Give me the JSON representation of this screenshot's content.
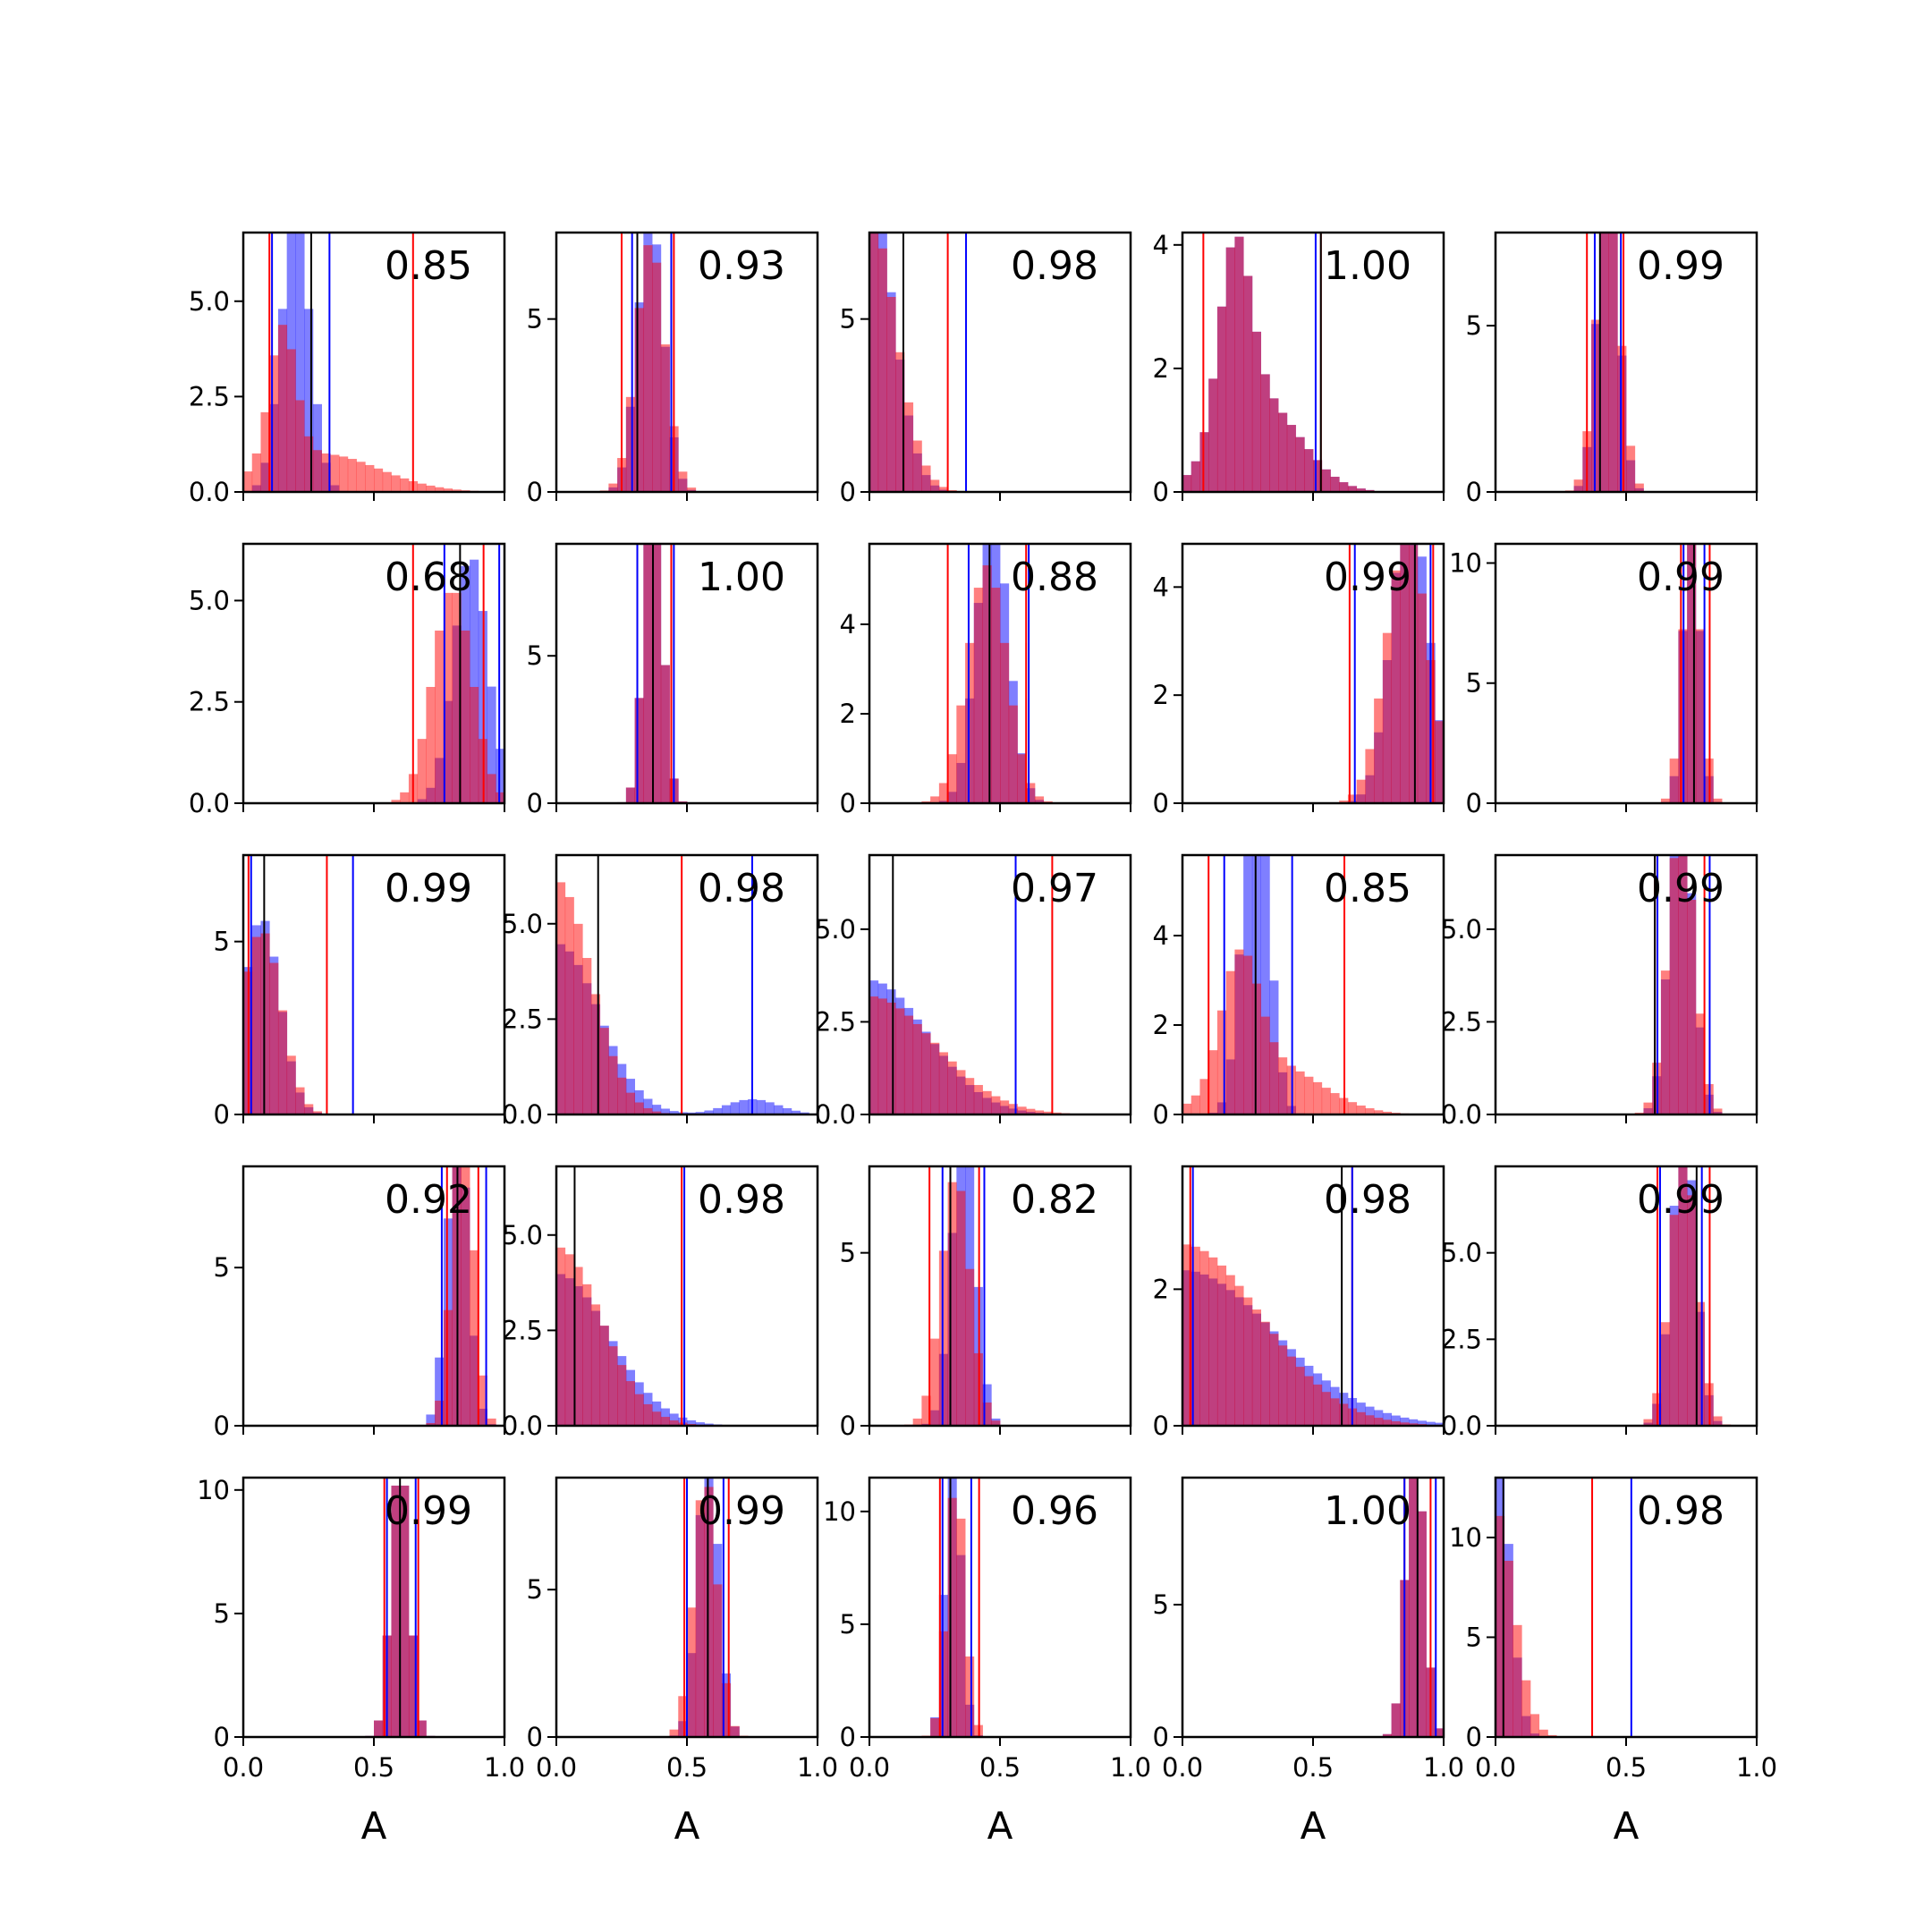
{
  "chart_data": {
    "type": "histogram-grid",
    "rows": 5,
    "cols": 5,
    "xlim": [
      0,
      1
    ],
    "xlabel": "A",
    "x_ticks": [
      0.0,
      0.5,
      1.0
    ],
    "x_tick_labels": [
      "0.0",
      "0.5",
      "1.0"
    ],
    "colors": {
      "blue": "#0000ff",
      "red": "#ff0000",
      "black": "#000000"
    },
    "bins": 30,
    "panels": [
      {
        "annotation": "0.85",
        "ylim": [
          0,
          6.8
        ],
        "yticks": [
          0,
          2.5,
          5.0
        ],
        "ytick_labels": [
          "0.0",
          "2.5",
          "5.0"
        ],
        "blue": [
          {
            "m": 0.2,
            "s": 0.055,
            "w": 1
          }
        ],
        "red": [
          {
            "m": 0.15,
            "s": 0.05,
            "w": 0.45
          },
          {
            "m": 0.3,
            "s": 0.22,
            "w": 0.55
          }
        ],
        "vlines": {
          "black": [
            0.26
          ],
          "blue": [
            0.11,
            0.33
          ],
          "red": [
            0.1,
            0.65
          ]
        }
      },
      {
        "annotation": "0.93",
        "ylim": [
          0,
          7.5
        ],
        "yticks": [
          0,
          5
        ],
        "ytick_labels": [
          "0",
          "5"
        ],
        "blue": [
          {
            "m": 0.36,
            "s": 0.05,
            "w": 1
          }
        ],
        "red": [
          {
            "m": 0.36,
            "s": 0.055,
            "w": 1
          }
        ],
        "vlines": {
          "black": [
            0.31
          ],
          "blue": [
            0.29,
            0.44
          ],
          "red": [
            0.25,
            0.45
          ]
        }
      },
      {
        "annotation": "0.98",
        "ylim": [
          0,
          7.5
        ],
        "yticks": [
          0,
          5
        ],
        "ytick_labels": [
          "0",
          "5"
        ],
        "blue": [
          {
            "m": 0.0,
            "s": 0.09,
            "w": 1,
            "half": true
          }
        ],
        "red": [
          {
            "m": 0.0,
            "s": 0.1,
            "w": 1,
            "half": true
          }
        ],
        "vlines": {
          "black": [
            0.13
          ],
          "blue": [
            0.37
          ],
          "red": [
            0.3
          ]
        }
      },
      {
        "annotation": "1.00",
        "ylim": [
          0,
          4.2
        ],
        "yticks": [
          0,
          2,
          4
        ],
        "ytick_labels": [
          "0",
          "2",
          "4"
        ],
        "blue": [
          {
            "m": 0.2,
            "s": 0.06,
            "w": 0.45
          },
          {
            "m": 0.3,
            "s": 0.15,
            "w": 0.55
          }
        ],
        "red": [
          {
            "m": 0.2,
            "s": 0.06,
            "w": 0.45
          },
          {
            "m": 0.3,
            "s": 0.15,
            "w": 0.55
          }
        ],
        "vlines": {
          "black": [
            0.53
          ],
          "blue": [
            0.51
          ],
          "red": [
            0.08,
            0.53
          ]
        }
      },
      {
        "annotation": "0.99",
        "ylim": [
          0,
          7.8
        ],
        "yticks": [
          0,
          5
        ],
        "ytick_labels": [
          "0",
          "5"
        ],
        "blue": [
          {
            "m": 0.43,
            "s": 0.04,
            "w": 1
          }
        ],
        "red": [
          {
            "m": 0.43,
            "s": 0.045,
            "w": 1
          }
        ],
        "vlines": {
          "black": [
            0.4
          ],
          "blue": [
            0.38,
            0.48
          ],
          "red": [
            0.35,
            0.49
          ]
        }
      },
      {
        "annotation": "0.68",
        "ylim": [
          0,
          6.4
        ],
        "yticks": [
          0,
          2.5,
          5.0
        ],
        "ytick_labels": [
          "0.0",
          "2.5",
          "5.0"
        ],
        "blue": [
          {
            "m": 0.87,
            "s": 0.065,
            "w": 1
          }
        ],
        "red": [
          {
            "m": 0.8,
            "s": 0.075,
            "w": 1
          }
        ],
        "vlines": {
          "black": [
            0.83
          ],
          "blue": [
            0.77,
            0.98
          ],
          "red": [
            0.65,
            0.92
          ]
        }
      },
      {
        "annotation": "1.00",
        "ylim": [
          0,
          8.8
        ],
        "yticks": [
          0,
          5
        ],
        "ytick_labels": [
          "0",
          "5"
        ],
        "blue": [
          {
            "m": 0.37,
            "s": 0.035,
            "w": 1
          }
        ],
        "red": [
          {
            "m": 0.37,
            "s": 0.035,
            "w": 1
          }
        ],
        "vlines": {
          "black": [
            0.37
          ],
          "blue": [
            0.31,
            0.45
          ],
          "red": [
            0.31,
            0.44
          ]
        }
      },
      {
        "annotation": "0.88",
        "ylim": [
          0,
          5.8
        ],
        "yticks": [
          0,
          2,
          4
        ],
        "ytick_labels": [
          "0",
          "2",
          "4"
        ],
        "blue": [
          {
            "m": 0.47,
            "s": 0.06,
            "w": 1
          }
        ],
        "red": [
          {
            "m": 0.45,
            "s": 0.075,
            "w": 1
          }
        ],
        "vlines": {
          "black": [
            0.46
          ],
          "blue": [
            0.38,
            0.61
          ],
          "red": [
            0.3,
            0.6
          ]
        }
      },
      {
        "annotation": "0.99",
        "ylim": [
          0,
          4.8
        ],
        "yticks": [
          0,
          2,
          4
        ],
        "ytick_labels": [
          "0",
          "2",
          "4"
        ],
        "blue": [
          {
            "m": 0.87,
            "s": 0.07,
            "w": 1
          }
        ],
        "red": [
          {
            "m": 0.86,
            "s": 0.08,
            "w": 1
          }
        ],
        "vlines": {
          "black": [
            0.89
          ],
          "blue": [
            0.66,
            0.95
          ],
          "red": [
            0.64,
            0.96
          ]
        }
      },
      {
        "annotation": "0.99",
        "ylim": [
          0,
          10.8
        ],
        "yticks": [
          0,
          5,
          10
        ],
        "ytick_labels": [
          "0",
          "5",
          "10"
        ],
        "blue": [
          {
            "m": 0.75,
            "s": 0.03,
            "w": 1
          }
        ],
        "red": [
          {
            "m": 0.75,
            "s": 0.035,
            "w": 1
          }
        ],
        "vlines": {
          "black": [
            0.76
          ],
          "blue": [
            0.72,
            0.8
          ],
          "red": [
            0.71,
            0.82
          ]
        }
      },
      {
        "annotation": "0.99",
        "ylim": [
          0,
          7.5
        ],
        "yticks": [
          0,
          5
        ],
        "ytick_labels": [
          "0",
          "5"
        ],
        "blue": [
          {
            "m": 0.07,
            "s": 0.07,
            "w": 1
          }
        ],
        "red": [
          {
            "m": 0.07,
            "s": 0.075,
            "w": 1
          }
        ],
        "vlines": {
          "black": [
            0.08
          ],
          "blue": [
            0.03,
            0.42
          ],
          "red": [
            0.02,
            0.32
          ]
        }
      },
      {
        "annotation": "0.98",
        "ylim": [
          0,
          6.8
        ],
        "yticks": [
          0,
          2.5,
          5.0
        ],
        "ytick_labels": [
          "0.0",
          "2.5",
          "5.0"
        ],
        "blue": [
          {
            "m": 0.0,
            "s": 0.16,
            "w": 0.9,
            "half": true
          },
          {
            "m": 0.75,
            "s": 0.1,
            "w": 0.1
          }
        ],
        "red": [
          {
            "m": 0.0,
            "s": 0.13,
            "w": 1,
            "half": true
          }
        ],
        "vlines": {
          "black": [
            0.16
          ],
          "blue": [
            0.75
          ],
          "red": [
            0.48
          ]
        }
      },
      {
        "annotation": "0.97",
        "ylim": [
          0,
          7.0
        ],
        "yticks": [
          0,
          2.5,
          5.0
        ],
        "ytick_labels": [
          "0.0",
          "2.5",
          "5.0"
        ],
        "blue": [
          {
            "m": 0.0,
            "s": 0.22,
            "w": 1,
            "half": true
          }
        ],
        "red": [
          {
            "m": 0.0,
            "s": 0.25,
            "w": 1,
            "half": true
          }
        ],
        "vlines": {
          "black": [
            0.09
          ],
          "blue": [
            0.56
          ],
          "red": [
            0.7
          ]
        }
      },
      {
        "annotation": "0.85",
        "ylim": [
          0,
          5.8
        ],
        "yticks": [
          0,
          2,
          4
        ],
        "ytick_labels": [
          "0",
          "2",
          "4"
        ],
        "blue": [
          {
            "m": 0.28,
            "s": 0.05,
            "w": 1
          }
        ],
        "red": [
          {
            "m": 0.22,
            "s": 0.07,
            "w": 0.5
          },
          {
            "m": 0.35,
            "s": 0.18,
            "w": 0.5
          }
        ],
        "vlines": {
          "black": [
            0.28
          ],
          "blue": [
            0.16,
            0.42
          ],
          "red": [
            0.1,
            0.62
          ]
        }
      },
      {
        "annotation": "0.99",
        "ylim": [
          0,
          7.0
        ],
        "yticks": [
          0,
          2.5,
          5.0
        ],
        "ytick_labels": [
          "0.0",
          "2.5",
          "5.0"
        ],
        "blue": [
          {
            "m": 0.71,
            "s": 0.045,
            "w": 1
          }
        ],
        "red": [
          {
            "m": 0.71,
            "s": 0.05,
            "w": 1
          }
        ],
        "vlines": {
          "black": [
            0.61
          ],
          "blue": [
            0.62,
            0.82
          ],
          "red": [
            0.61,
            0.8
          ]
        }
      },
      {
        "annotation": "0.92",
        "ylim": [
          0,
          8.2
        ],
        "yticks": [
          0,
          5
        ],
        "ytick_labels": [
          "0",
          "5"
        ],
        "blue": [
          {
            "m": 0.82,
            "s": 0.04,
            "w": 1
          }
        ],
        "red": [
          {
            "m": 0.84,
            "s": 0.04,
            "w": 1
          }
        ],
        "vlines": {
          "black": [
            0.82
          ],
          "blue": [
            0.76,
            0.93
          ],
          "red": [
            0.78,
            0.9
          ]
        }
      },
      {
        "annotation": "0.98",
        "ylim": [
          0,
          6.8
        ],
        "yticks": [
          0,
          2.5,
          5.0
        ],
        "ytick_labels": [
          "0.0",
          "2.5",
          "5.0"
        ],
        "blue": [
          {
            "m": 0.0,
            "s": 0.2,
            "w": 1,
            "half": true
          }
        ],
        "red": [
          {
            "m": 0.0,
            "s": 0.17,
            "w": 1,
            "half": true
          }
        ],
        "vlines": {
          "black": [
            0.07
          ],
          "blue": [
            0.49
          ],
          "red": [
            0.48
          ]
        }
      },
      {
        "annotation": "0.82",
        "ylim": [
          0,
          7.5
        ],
        "yticks": [
          0,
          5
        ],
        "ytick_labels": [
          "0",
          "5"
        ],
        "blue": [
          {
            "m": 0.36,
            "s": 0.045,
            "w": 1
          }
        ],
        "red": [
          {
            "m": 0.33,
            "s": 0.055,
            "w": 1
          }
        ],
        "vlines": {
          "black": [
            0.31
          ],
          "blue": [
            0.28,
            0.44
          ],
          "red": [
            0.23,
            0.42
          ]
        }
      },
      {
        "annotation": "0.98",
        "ylim": [
          0,
          3.8
        ],
        "yticks": [
          0,
          2
        ],
        "ytick_labels": [
          "0",
          "2"
        ],
        "blue": [
          {
            "m": 0.0,
            "s": 0.35,
            "w": 1,
            "half": true
          }
        ],
        "red": [
          {
            "m": 0.0,
            "s": 0.3,
            "w": 1,
            "half": true
          }
        ],
        "vlines": {
          "black": [
            0.61
          ],
          "blue": [
            0.04,
            0.65
          ],
          "red": [
            0.03,
            0.65
          ]
        }
      },
      {
        "annotation": "0.99",
        "ylim": [
          0,
          7.5
        ],
        "yticks": [
          0,
          2.5,
          5.0
        ],
        "ytick_labels": [
          "0.0",
          "2.5",
          "5.0"
        ],
        "blue": [
          {
            "m": 0.72,
            "s": 0.045,
            "w": 1
          }
        ],
        "red": [
          {
            "m": 0.72,
            "s": 0.05,
            "w": 1
          }
        ],
        "vlines": {
          "black": [
            0.77
          ],
          "blue": [
            0.63,
            0.79
          ],
          "red": [
            0.62,
            0.82
          ]
        }
      },
      {
        "annotation": "0.99",
        "ylim": [
          0,
          10.5
        ],
        "yticks": [
          0,
          5,
          10
        ],
        "ytick_labels": [
          "0",
          "5",
          "10"
        ],
        "blue": [
          {
            "m": 0.6,
            "s": 0.035,
            "w": 1
          }
        ],
        "red": [
          {
            "m": 0.6,
            "s": 0.035,
            "w": 1
          }
        ],
        "vlines": {
          "black": [
            0.6
          ],
          "blue": [
            0.55,
            0.66
          ],
          "red": [
            0.54,
            0.67
          ]
        }
      },
      {
        "annotation": "0.99",
        "ylim": [
          0,
          8.8
        ],
        "yticks": [
          0,
          5
        ],
        "ytick_labels": [
          "0",
          "5"
        ],
        "blue": [
          {
            "m": 0.58,
            "s": 0.04,
            "w": 1
          }
        ],
        "red": [
          {
            "m": 0.57,
            "s": 0.045,
            "w": 1
          }
        ],
        "vlines": {
          "black": [
            0.58
          ],
          "blue": [
            0.5,
            0.64
          ],
          "red": [
            0.49,
            0.66
          ]
        }
      },
      {
        "annotation": "0.96",
        "ylim": [
          0,
          11.5
        ],
        "yticks": [
          0,
          5,
          10
        ],
        "ytick_labels": [
          "0",
          "5",
          "10"
        ],
        "blue": [
          {
            "m": 0.32,
            "s": 0.03,
            "w": 1
          }
        ],
        "red": [
          {
            "m": 0.33,
            "s": 0.035,
            "w": 1
          }
        ],
        "vlines": {
          "black": [
            0.31
          ],
          "blue": [
            0.28,
            0.39
          ],
          "red": [
            0.27,
            0.42
          ]
        }
      },
      {
        "annotation": "1.00",
        "ylim": [
          0,
          9.8
        ],
        "yticks": [
          0,
          5
        ],
        "ytick_labels": [
          "0",
          "5"
        ],
        "blue": [
          {
            "m": 0.89,
            "s": 0.035,
            "w": 1
          }
        ],
        "red": [
          {
            "m": 0.89,
            "s": 0.035,
            "w": 1
          }
        ],
        "vlines": {
          "black": [
            0.9
          ],
          "blue": [
            0.85,
            0.97
          ],
          "red": [
            0.85,
            0.95
          ]
        }
      },
      {
        "annotation": "0.98",
        "ylim": [
          0,
          13.0
        ],
        "yticks": [
          0,
          5,
          10
        ],
        "ytick_labels": [
          "0",
          "5",
          "10"
        ],
        "blue": [
          {
            "m": 0.0,
            "s": 0.05,
            "w": 1,
            "half": true
          }
        ],
        "red": [
          {
            "m": 0.0,
            "s": 0.07,
            "w": 1,
            "half": true
          }
        ],
        "vlines": {
          "black": [
            0.03
          ],
          "blue": [
            0.52
          ],
          "red": [
            0.37
          ]
        }
      }
    ]
  }
}
